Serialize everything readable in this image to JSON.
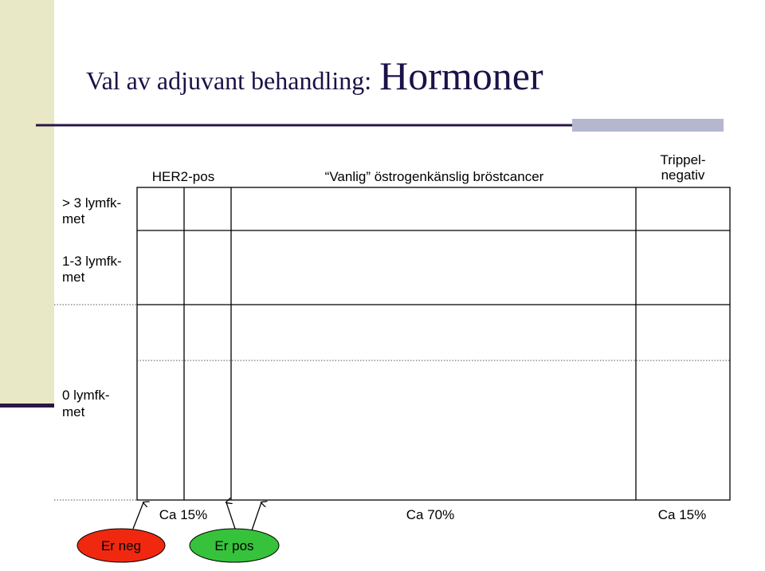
{
  "title": {
    "main": "Val av adjuvant behandling:",
    "emphasis": "Hormoner"
  },
  "column_headers": {
    "her2": "HER2-pos",
    "vanlig": "“Vanlig” östrogenkänslig bröstcancer",
    "trippel": [
      "Trippel-",
      "negativ"
    ]
  },
  "row_labels": [
    [
      "> 3 lymfk-",
      "met"
    ],
    [
      "1-3 lymfk-",
      "met"
    ],
    [
      "0 lymfk-",
      "met"
    ]
  ],
  "shares": [
    "Ca 15%",
    "Ca 70%",
    "Ca 15%"
  ],
  "callouts": [
    "Er neg",
    "Er pos"
  ]
}
